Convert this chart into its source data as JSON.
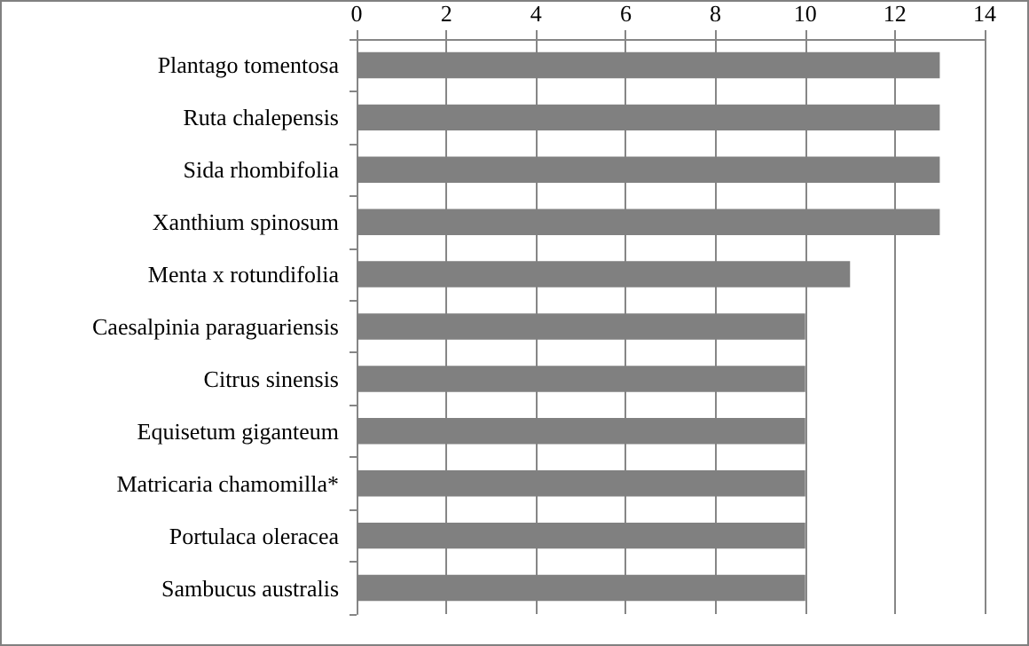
{
  "chart_data": {
    "type": "bar",
    "orientation": "horizontal",
    "categories": [
      "Plantago tomentosa",
      "Ruta chalepensis",
      "Sida rhombifolia",
      "Xanthium spinosum",
      "Menta x rotundifolia",
      "Caesalpinia paraguariensis",
      "Citrus sinensis",
      "Equisetum giganteum",
      "Matricaria chamomilla*",
      "Portulaca oleracea",
      "Sambucus australis"
    ],
    "values": [
      13,
      13,
      13,
      13,
      11,
      10,
      10,
      10,
      10,
      10,
      10
    ],
    "color": "#808080",
    "xlim": [
      0,
      14
    ],
    "xticks": [
      0,
      2,
      4,
      6,
      8,
      10,
      12,
      14
    ],
    "grid": "x"
  }
}
